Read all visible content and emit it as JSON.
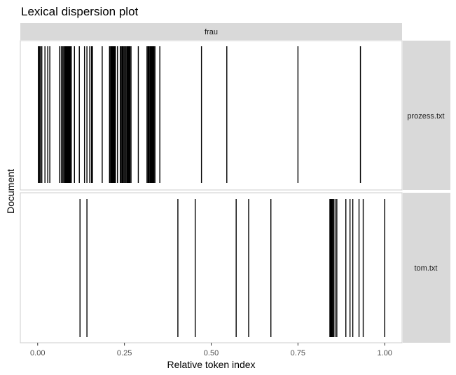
{
  "chart_data": {
    "type": "lexical-dispersion",
    "title": "Lexical dispersion plot",
    "xlabel": "Relative token index",
    "ylabel": "Document",
    "xlim": [
      -0.05,
      1.05
    ],
    "x_ticks": [
      0,
      0.25,
      0.5,
      0.75,
      1
    ],
    "x_tick_labels": [
      "0.00",
      "0.25",
      "0.50",
      "0.75",
      "1.00"
    ],
    "grid": false,
    "facet_column": "frau",
    "panels": [
      {
        "document": "prozess.txt",
        "positions": [
          0.002,
          0.005,
          0.008,
          0.012,
          0.021,
          0.029,
          0.035,
          0.063,
          0.068,
          0.072,
          0.075,
          0.078,
          0.08,
          0.082,
          0.084,
          0.086,
          0.088,
          0.09,
          0.092,
          0.094,
          0.097,
          0.106,
          0.12,
          0.135,
          0.142,
          0.15,
          0.155,
          0.158,
          0.186,
          0.207,
          0.21,
          0.212,
          0.214,
          0.216,
          0.218,
          0.22,
          0.222,
          0.224,
          0.23,
          0.238,
          0.241,
          0.244,
          0.246,
          0.249,
          0.252,
          0.255,
          0.258,
          0.26,
          0.262,
          0.264,
          0.266,
          0.269,
          0.29,
          0.315,
          0.318,
          0.32,
          0.323,
          0.325,
          0.327,
          0.329,
          0.331,
          0.333,
          0.335,
          0.338,
          0.352,
          0.472,
          0.545,
          0.75,
          0.93
        ]
      },
      {
        "document": "tom.txt",
        "positions": [
          0.122,
          0.142,
          0.404,
          0.454,
          0.572,
          0.608,
          0.672,
          0.842,
          0.844,
          0.846,
          0.848,
          0.85,
          0.853,
          0.857,
          0.862,
          0.888,
          0.9,
          0.908,
          0.926,
          0.938,
          1.0
        ]
      }
    ]
  }
}
